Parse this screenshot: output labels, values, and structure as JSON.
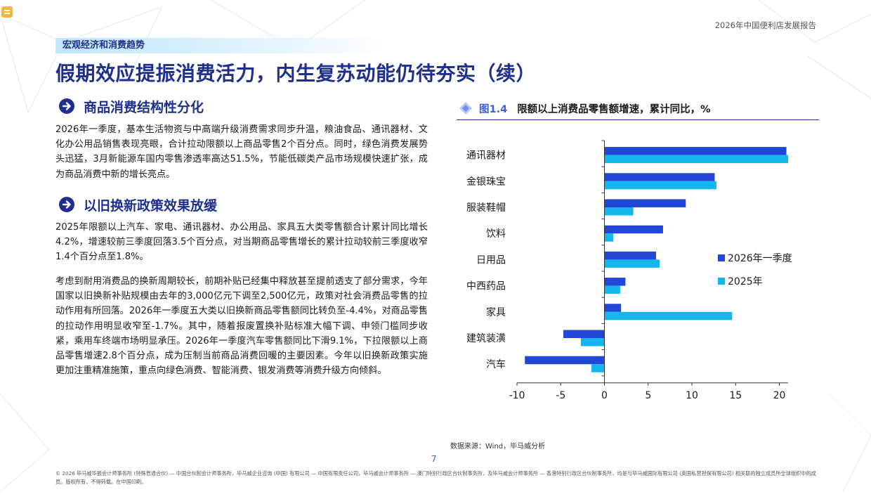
{
  "header": {
    "report_title": "2026年中国便利店发展报告"
  },
  "section_tag": "宏观经济和消费趋势",
  "page_heading": "假期效应提振消费活力，内生复苏动能仍待夯实（续）",
  "left": {
    "heading1": "商品消费结构性分化",
    "para1": "2026年一季度，基本生活物资与中高端升级消费需求同步升温，粮油食品、通讯器材、文化办公用品销售表现亮眼，合计拉动限额以上商品零售2个百分点。同时，绿色消费发展势头迅猛，3月新能源车国内零售渗透率高达51.5%，节能低碳类产品市场规模快速扩张，成为商品消费中新的增长亮点。",
    "heading2": "以旧换新政策效果放缓",
    "para2": "2025年限额以上汽车、家电、通讯器材、办公用品、家具五大类零售额合计累计同比增长4.2%，增速较前三季度回落3.5个百分点，对当期商品零售增长的累计拉动较前三季度收窄1.4个百分点至1.8%。",
    "para3": "考虑到耐用消费品的换新周期较长，前期补贴已经集中释放甚至提前透支了部分需求，今年国家以旧换新补贴规模由去年的3,000亿元下调至2,500亿元，政策对社会消费品零售的拉动作用有所回落。2026年一季度五大类以旧换新商品零售额同比转负至-4.4%，对商品零售的拉动作用明显收窄至-1.7%。其中，随着报废置换补贴标准大幅下调、申领门槛同步收紧，乘用车终端市场明显承压。2026年一季度汽车零售额同比下滑9.1%，下拉限额以上商品零售增速2.8个百分点，成为压制当前商品消费回暖的主要因素。今年以旧换新政策实施更加注重精准施策，重点向绿色消费、智能消费、银发消费等消费升级方向倾斜。"
  },
  "figure": {
    "label": "图1.4",
    "title": "限额以上消费品零售额增速，累计同比，%"
  },
  "chart_data": {
    "type": "bar",
    "orientation": "horizontal",
    "title": "限额以上消费品零售额增速，累计同比，%",
    "categories": [
      "通讯器材",
      "金银珠宝",
      "服装鞋帽",
      "饮料",
      "日用品",
      "中西药品",
      "家具",
      "建筑装潢",
      "汽车"
    ],
    "series": [
      {
        "name": "2026年一季度",
        "color": "#2146d8",
        "values": [
          20.8,
          12.6,
          9.3,
          6.7,
          5.9,
          2.4,
          1.9,
          -4.7,
          -9.1
        ]
      },
      {
        "name": "2025年",
        "color": "#14b6ee",
        "values": [
          21.0,
          12.8,
          3.3,
          1.0,
          6.3,
          1.8,
          14.6,
          -2.7,
          -1.5
        ]
      }
    ],
    "xlim": [
      -10,
      21
    ],
    "xticks": [
      -10,
      -5,
      0,
      5,
      10,
      15,
      20
    ],
    "legend_position": "right",
    "grid": false
  },
  "source": "数据来源：Wind，毕马威分析",
  "page_number": "7",
  "footer": "© 2026 毕马威华振会计师事务所 (特殊普通合伙) — 中国合伙制会计师事务所，毕马威企业咨询 (中国) 有限公司 — 中国有限责任公司，毕马威会计师事务所 — 澳门特别行政区合伙制事务所，及毕马威会计师事务所 — 香港特别行政区合伙制事务所，均是与毕马威国际有限公司 (英国私营担保有限公司) 相关联的独立成员所全球组织中的成员。版权所有，不得转载。在中国印刷。"
}
